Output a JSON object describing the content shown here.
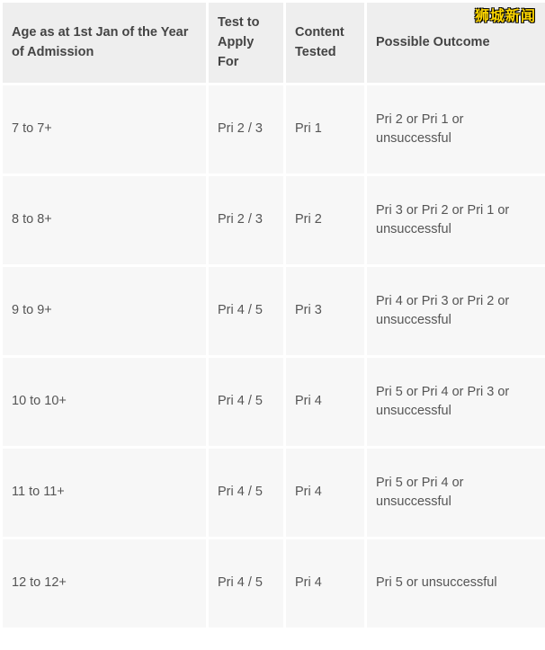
{
  "watermark": "狮城新闻",
  "table": {
    "columns": [
      "Age as at 1st Jan of the Year of Admission",
      "Test to Apply For",
      "Content Tested",
      "Possible Outcome"
    ],
    "rows": [
      {
        "age": "7 to 7+",
        "test": "Pri 2 / 3",
        "content": "Pri 1",
        "outcome": "Pri 2 or Pri 1 or unsuccessful"
      },
      {
        "age": "8 to 8+",
        "test": "Pri 2 / 3",
        "content": "Pri 2",
        "outcome": "Pri 3 or Pri 2 or Pri 1 or unsuccessful"
      },
      {
        "age": "9 to 9+",
        "test": "Pri 4 / 5",
        "content": "Pri 3",
        "outcome": "Pri 4 or Pri 3 or Pri 2 or unsuccessful"
      },
      {
        "age": "10 to 10+",
        "test": "Pri 4 / 5",
        "content": "Pri 4",
        "outcome": "Pri 5 or Pri 4 or Pri 3 or unsuccessful"
      },
      {
        "age": "11 to 11+",
        "test": "Pri 4 / 5",
        "content": "Pri 4",
        "outcome": "Pri 5 or Pri 4 or unsuccessful"
      },
      {
        "age": "12 to 12+",
        "test": "Pri 4 / 5",
        "content": "Pri 4",
        "outcome": "Pri 5 or unsuccessful"
      }
    ]
  }
}
